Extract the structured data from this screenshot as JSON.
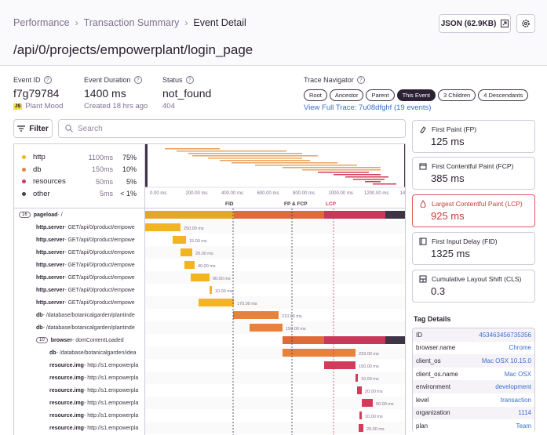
{
  "breadcrumb": [
    "Performance",
    "Transaction Summary",
    "Event Detail"
  ],
  "page_title": "/api/0/projects/empowerplant/login_page",
  "json_button": "JSON (62.9KB)",
  "event_id": {
    "label": "Event ID",
    "value": "f7g79784",
    "project": "Plant Mood",
    "project_badge": "JS"
  },
  "event_duration": {
    "label": "Event Duration",
    "value": "1400 ms",
    "sub": "Created 18 hrs ago"
  },
  "status": {
    "label": "Status",
    "value": "not_found",
    "sub": "404"
  },
  "trace": {
    "label": "Trace Navigator",
    "pills": [
      "Root",
      "Ancestor",
      "Parent",
      "This Event",
      "3 Children",
      "4 Descendants"
    ],
    "link": "View Full Trace: 7u08dfghf (19 events)"
  },
  "filter_label": "Filter",
  "search_placeholder": "Search",
  "ops": [
    {
      "name": "http",
      "dur": "1100ms",
      "pct": "75%",
      "color": "#f2b41f"
    },
    {
      "name": "db",
      "dur": "150ms",
      "pct": "10%",
      "color": "#e8823a"
    },
    {
      "name": "resources",
      "dur": "50ms",
      "pct": "5%",
      "color": "#d23c5a"
    },
    {
      "name": "other",
      "dur": "5ms",
      "pct": "< 1%",
      "color": "#444444"
    }
  ],
  "ticks": [
    "0.00 ms",
    "200.00 ms",
    "400.00 ms",
    "600.00 ms",
    "800.00 ms",
    "1000.00 ms",
    "1200.00 ms",
    "1400.00 ms"
  ],
  "markers": [
    "FID",
    "FP & FCP",
    "LCP"
  ],
  "spans": [
    {
      "badge": "16",
      "op": "pageload",
      "desc": " - /",
      "label": ""
    },
    {
      "op": "http.server",
      "desc": " - GET/api/0/product/empowe",
      "label": "250.00 ms"
    },
    {
      "op": "http.server",
      "desc": " - GET/api/0/product/empowe",
      "label": "15.00 ms"
    },
    {
      "op": "http.server",
      "desc": " - GET/api/0/product/empowe",
      "label": "20.00 ms"
    },
    {
      "op": "http.server",
      "desc": " - GET/api/0/product/empowe",
      "label": "40.00 ms"
    },
    {
      "op": "http.server",
      "desc": " - GET/api/0/product/empowe",
      "label": "90.00 ms"
    },
    {
      "op": "http.server",
      "desc": " - GET/api/0/product/empowe",
      "label": "10.00 ms"
    },
    {
      "op": "http.server",
      "desc": " - GET/api/0/product/empowe",
      "label": "170.00 ms"
    },
    {
      "op": "db",
      "desc": " - /database/botanicalgarden/plantinde",
      "label": "210.00 ms"
    },
    {
      "op": "db",
      "desc": " - /database/botanicalgarden/plantinde",
      "label": "150.00 ms"
    },
    {
      "badge": "10",
      "op": "browser",
      "desc": " - domContentLoaded",
      "label": ""
    },
    {
      "op": "db",
      "desc": " - /database/botanicalgarden/idea",
      "label": "233.00 ms"
    },
    {
      "op": "resource.img",
      "desc": " - http://s1.empowerpla",
      "label": "150.00 ms"
    },
    {
      "op": "resource.img",
      "desc": " - http://s1.empowerpla",
      "label": "10.00 ms"
    },
    {
      "op": "resource.img",
      "desc": " - http://s1.empowerpla",
      "label": "20.00 ms"
    },
    {
      "op": "resource.img",
      "desc": " - http://s1.empowerpla",
      "label": "50.00 ms"
    },
    {
      "op": "resource.img",
      "desc": " - http://s1.empowerpla",
      "label": "10.00 ms"
    },
    {
      "op": "resource.img",
      "desc": " - http://s1.empowerpla",
      "label": "20.00 ms"
    }
  ],
  "vitals": [
    {
      "label": "First Paint (FP)",
      "value": "125 ms",
      "icon": "paint-icon"
    },
    {
      "label": "First Contentful Paint (FCP)",
      "value": "385 ms",
      "icon": "image-icon"
    },
    {
      "label": "Largest Contentful Paint (LCP)",
      "value": "925 ms",
      "icon": "fire-icon"
    },
    {
      "label": "First Input Delay (FID)",
      "value": "1325 ms",
      "icon": "input-icon"
    },
    {
      "label": "Cumulative Layout Shift (CLS)",
      "value": "0.3",
      "icon": "shift-icon"
    }
  ],
  "tag_title": "Tag Details",
  "tags": [
    {
      "k": "ID",
      "v": "453463456735356"
    },
    {
      "k": "browser.name",
      "v": "Chrome"
    },
    {
      "k": "client_os",
      "v": "Mac OSX 10.15.0"
    },
    {
      "k": "client_os.name",
      "v": "Mac OSX"
    },
    {
      "k": "environment",
      "v": "development"
    },
    {
      "k": "level",
      "v": "transaction"
    },
    {
      "k": "organization",
      "v": "1114"
    },
    {
      "k": "plan",
      "v": "Team"
    }
  ]
}
